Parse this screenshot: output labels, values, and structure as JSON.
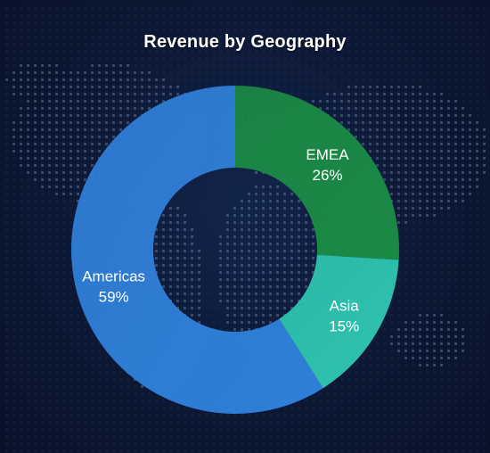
{
  "chart_data": {
    "type": "pie",
    "title": "Revenue by Geography",
    "donut": true,
    "categories": [
      "EMEA",
      "Asia",
      "Americas"
    ],
    "values": [
      26,
      15,
      59
    ],
    "value_labels": [
      "26%",
      "15%",
      "59%"
    ],
    "colors": {
      "EMEA": "#1b8a45",
      "Asia": "#2ec4b0",
      "Americas": "#2f7fd8"
    },
    "legend": "none",
    "background": "#0b1632"
  }
}
